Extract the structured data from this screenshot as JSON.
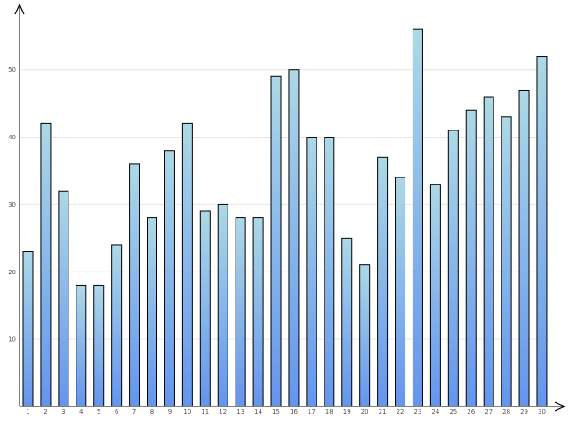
{
  "chart_data": {
    "type": "bar",
    "categories": [
      "1",
      "2",
      "3",
      "4",
      "5",
      "6",
      "7",
      "8",
      "9",
      "10",
      "11",
      "12",
      "13",
      "14",
      "15",
      "16",
      "17",
      "18",
      "19",
      "20",
      "21",
      "22",
      "23",
      "24",
      "25",
      "26",
      "27",
      "28",
      "29",
      "30"
    ],
    "series": [
      {
        "values": [
          23,
          42,
          32,
          18,
          18,
          24,
          36,
          28,
          38,
          42,
          29,
          30,
          28,
          28,
          49,
          50,
          40,
          40,
          25,
          21,
          37,
          34,
          56,
          33,
          41,
          44,
          46,
          43,
          47,
          52
        ]
      }
    ],
    "title": "",
    "xlabel": "",
    "ylabel": "",
    "ylim": [
      0,
      58
    ],
    "yticks": [
      "10",
      "20",
      "30",
      "40",
      "50"
    ],
    "grid": true,
    "legend": "none",
    "colors": {
      "bar_top": "#add8e6",
      "bar_bottom": "#6495ed",
      "grid": "#e6e6e6",
      "axis": "#000000"
    }
  }
}
